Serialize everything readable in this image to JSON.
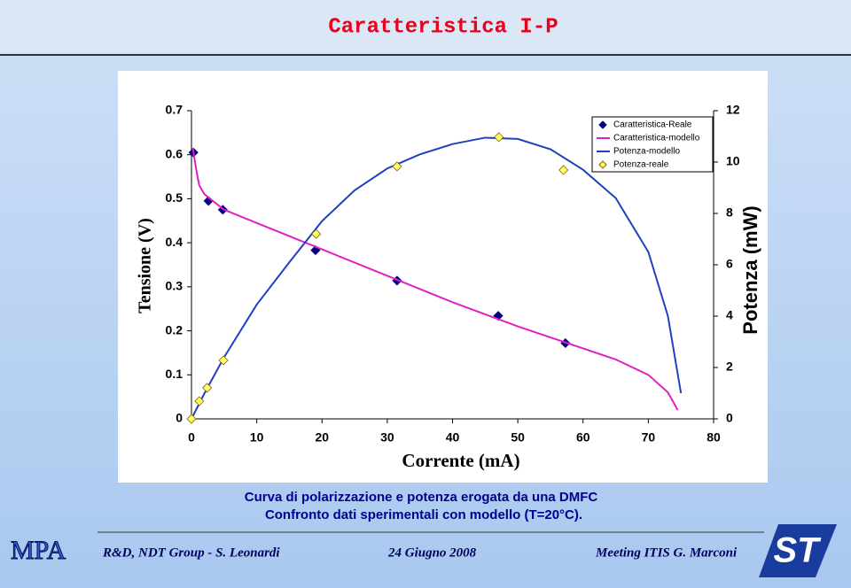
{
  "header": {
    "title": "Caratteristica I-P"
  },
  "chart_data": {
    "type": "line",
    "xlabel": "Corrente (mA)",
    "ylabel": "Tensione (V)",
    "y2label": "Potenza (mW)",
    "xlim": [
      0,
      80
    ],
    "xticks": [
      0,
      10,
      20,
      30,
      40,
      50,
      60,
      70,
      80
    ],
    "ylim": [
      0,
      0.7
    ],
    "yticks": [
      0,
      0.1,
      0.2,
      0.3,
      0.4,
      0.5,
      0.6,
      0.7
    ],
    "y2lim": [
      0,
      12
    ],
    "y2ticks": [
      0,
      2,
      4,
      6,
      8,
      10,
      12
    ],
    "legend": "top-right",
    "series": [
      {
        "name": "Caratteristica-Reale",
        "mode": "markers",
        "marker": "diamond",
        "color": "#000080",
        "x": [
          0.3,
          2.6,
          4.8,
          19,
          31.5,
          47,
          57.3
        ],
        "values": [
          0.605,
          0.495,
          0.475,
          0.383,
          0.314,
          0.234,
          0.172
        ]
      },
      {
        "name": "Caratteristica-modello",
        "mode": "line",
        "color": "#e020c0",
        "x": [
          0.2,
          0.8,
          1.2,
          2,
          5,
          10,
          20,
          30,
          40,
          50,
          60,
          65,
          70,
          73,
          74.5
        ],
        "values": [
          0.615,
          0.56,
          0.53,
          0.51,
          0.475,
          0.445,
          0.385,
          0.325,
          0.265,
          0.21,
          0.16,
          0.135,
          0.1,
          0.06,
          0.02
        ]
      },
      {
        "name": "Potenza-modello",
        "mode": "line",
        "color": "#2040c0",
        "axis": "y2",
        "x": [
          0,
          2,
          5,
          10,
          15,
          20,
          25,
          30,
          35,
          40,
          45,
          50,
          55,
          60,
          65,
          70,
          73,
          75
        ],
        "values": [
          0,
          1,
          2.4,
          4.45,
          6.1,
          7.7,
          8.9,
          9.75,
          10.3,
          10.7,
          10.95,
          10.9,
          10.5,
          9.7,
          8.6,
          6.5,
          4,
          1
        ]
      },
      {
        "name": "Potenza-reale",
        "mode": "markers",
        "marker": "diamond",
        "color": "#ffff66",
        "axis": "y2",
        "x": [
          0,
          1.2,
          2.4,
          4.9,
          19.1,
          31.5,
          47.1,
          57
        ],
        "values": [
          0,
          0.69,
          1.21,
          2.28,
          7.2,
          9.83,
          10.97,
          9.69
        ]
      }
    ]
  },
  "caption": {
    "line1": "Curva di polarizzazione e potenza erogata da una DMFC",
    "line2": "Confronto dati sperimentali con modello (T=20°C)."
  },
  "footer": {
    "logo": "MPA",
    "group": "R&D, NDT Group - S. Leonardi",
    "date": "24 Giugno 2008",
    "event": "Meeting ITIS G. Marconi"
  }
}
